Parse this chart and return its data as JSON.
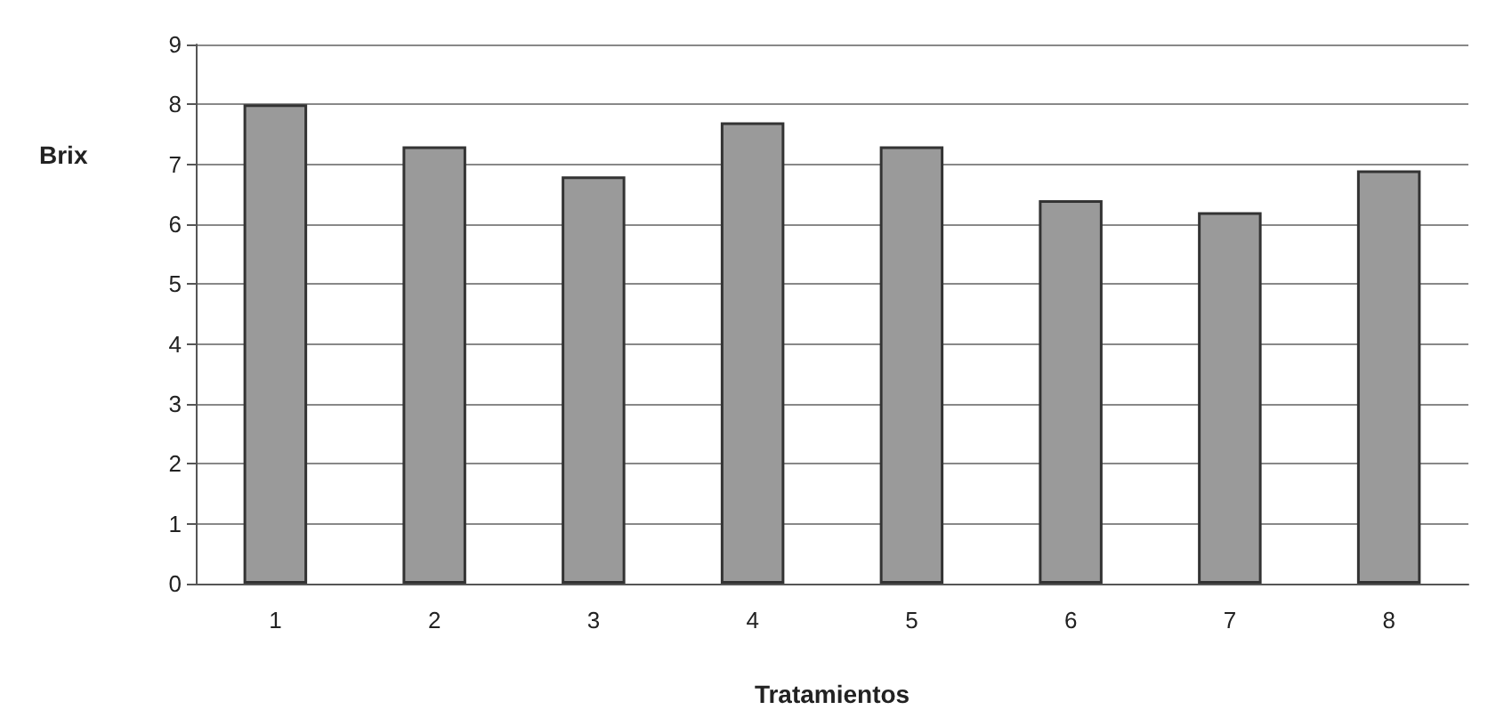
{
  "chart_data": {
    "type": "bar",
    "xlabel": "Tratamientos",
    "ylabel": "Brix",
    "categories": [
      "1",
      "2",
      "3",
      "4",
      "5",
      "6",
      "7",
      "8"
    ],
    "values": [
      8.0,
      7.3,
      6.8,
      7.7,
      7.3,
      6.4,
      6.2,
      6.9
    ],
    "color": "#9a9a9a",
    "ylim": [
      0,
      9
    ],
    "yticks": [
      0,
      1,
      2,
      3,
      4,
      5,
      6,
      7,
      8,
      9
    ],
    "grid": "y"
  }
}
